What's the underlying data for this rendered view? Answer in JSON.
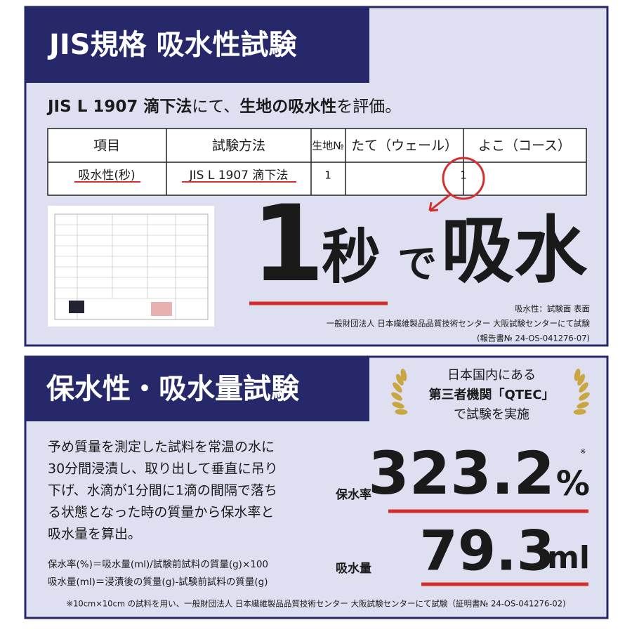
{
  "section1": {
    "title": "JIS規格 吸水性試験",
    "intro": [
      "JIS L 1907 滴下法",
      "にて、",
      "生地の吸水性",
      "を評価。"
    ],
    "table": {
      "header": [
        "項目",
        "試験方法",
        "生地№",
        "たて（ウェール）",
        "よこ（コース）"
      ],
      "row": [
        "吸水性(秒)",
        "JIS L 1907 滴下法",
        "1",
        "",
        "1"
      ]
    },
    "headline": [
      "1",
      "秒",
      "で",
      "吸水"
    ],
    "notes": [
      "吸水性：試験面 表面",
      "一般財団法人 日本繊維製品品質技術センター 大阪試験センターにて試験",
      "(報告書№ 24-OS-041276-07)"
    ]
  },
  "section2": {
    "title": "保水性・吸水量試験",
    "badge": [
      "日本国内にある",
      "第三者機関「QTEC」",
      "で試験を実施"
    ],
    "paragraph": [
      "予め質量を測定した試料を常温の水に",
      "30分間浸漬し、取り出して垂直に吊り",
      "下げ、水滴が1分間に1滴の間隔で落ち",
      "る状態となった時の質量から保水率と",
      "吸水量を算出。"
    ],
    "formulas": [
      "保水率(%)＝吸水量(ml)/試験前試料の質量(g)×100",
      "吸水量(ml)＝浸漬後の質量(g)-試験前試料の質量(g)"
    ],
    "mark": "※",
    "results": [
      {
        "label": "保水率",
        "value": "323.2",
        "unit": "%"
      },
      {
        "label": "吸水量",
        "value": "79.3",
        "unit": "ml"
      }
    ],
    "footnote": "※10cm×10cm の試料を用い、一般財団法人 日本繊維製品品質技術センター 大阪試験センターにて試験（証明書№ 24-OS-041276-02)"
  }
}
